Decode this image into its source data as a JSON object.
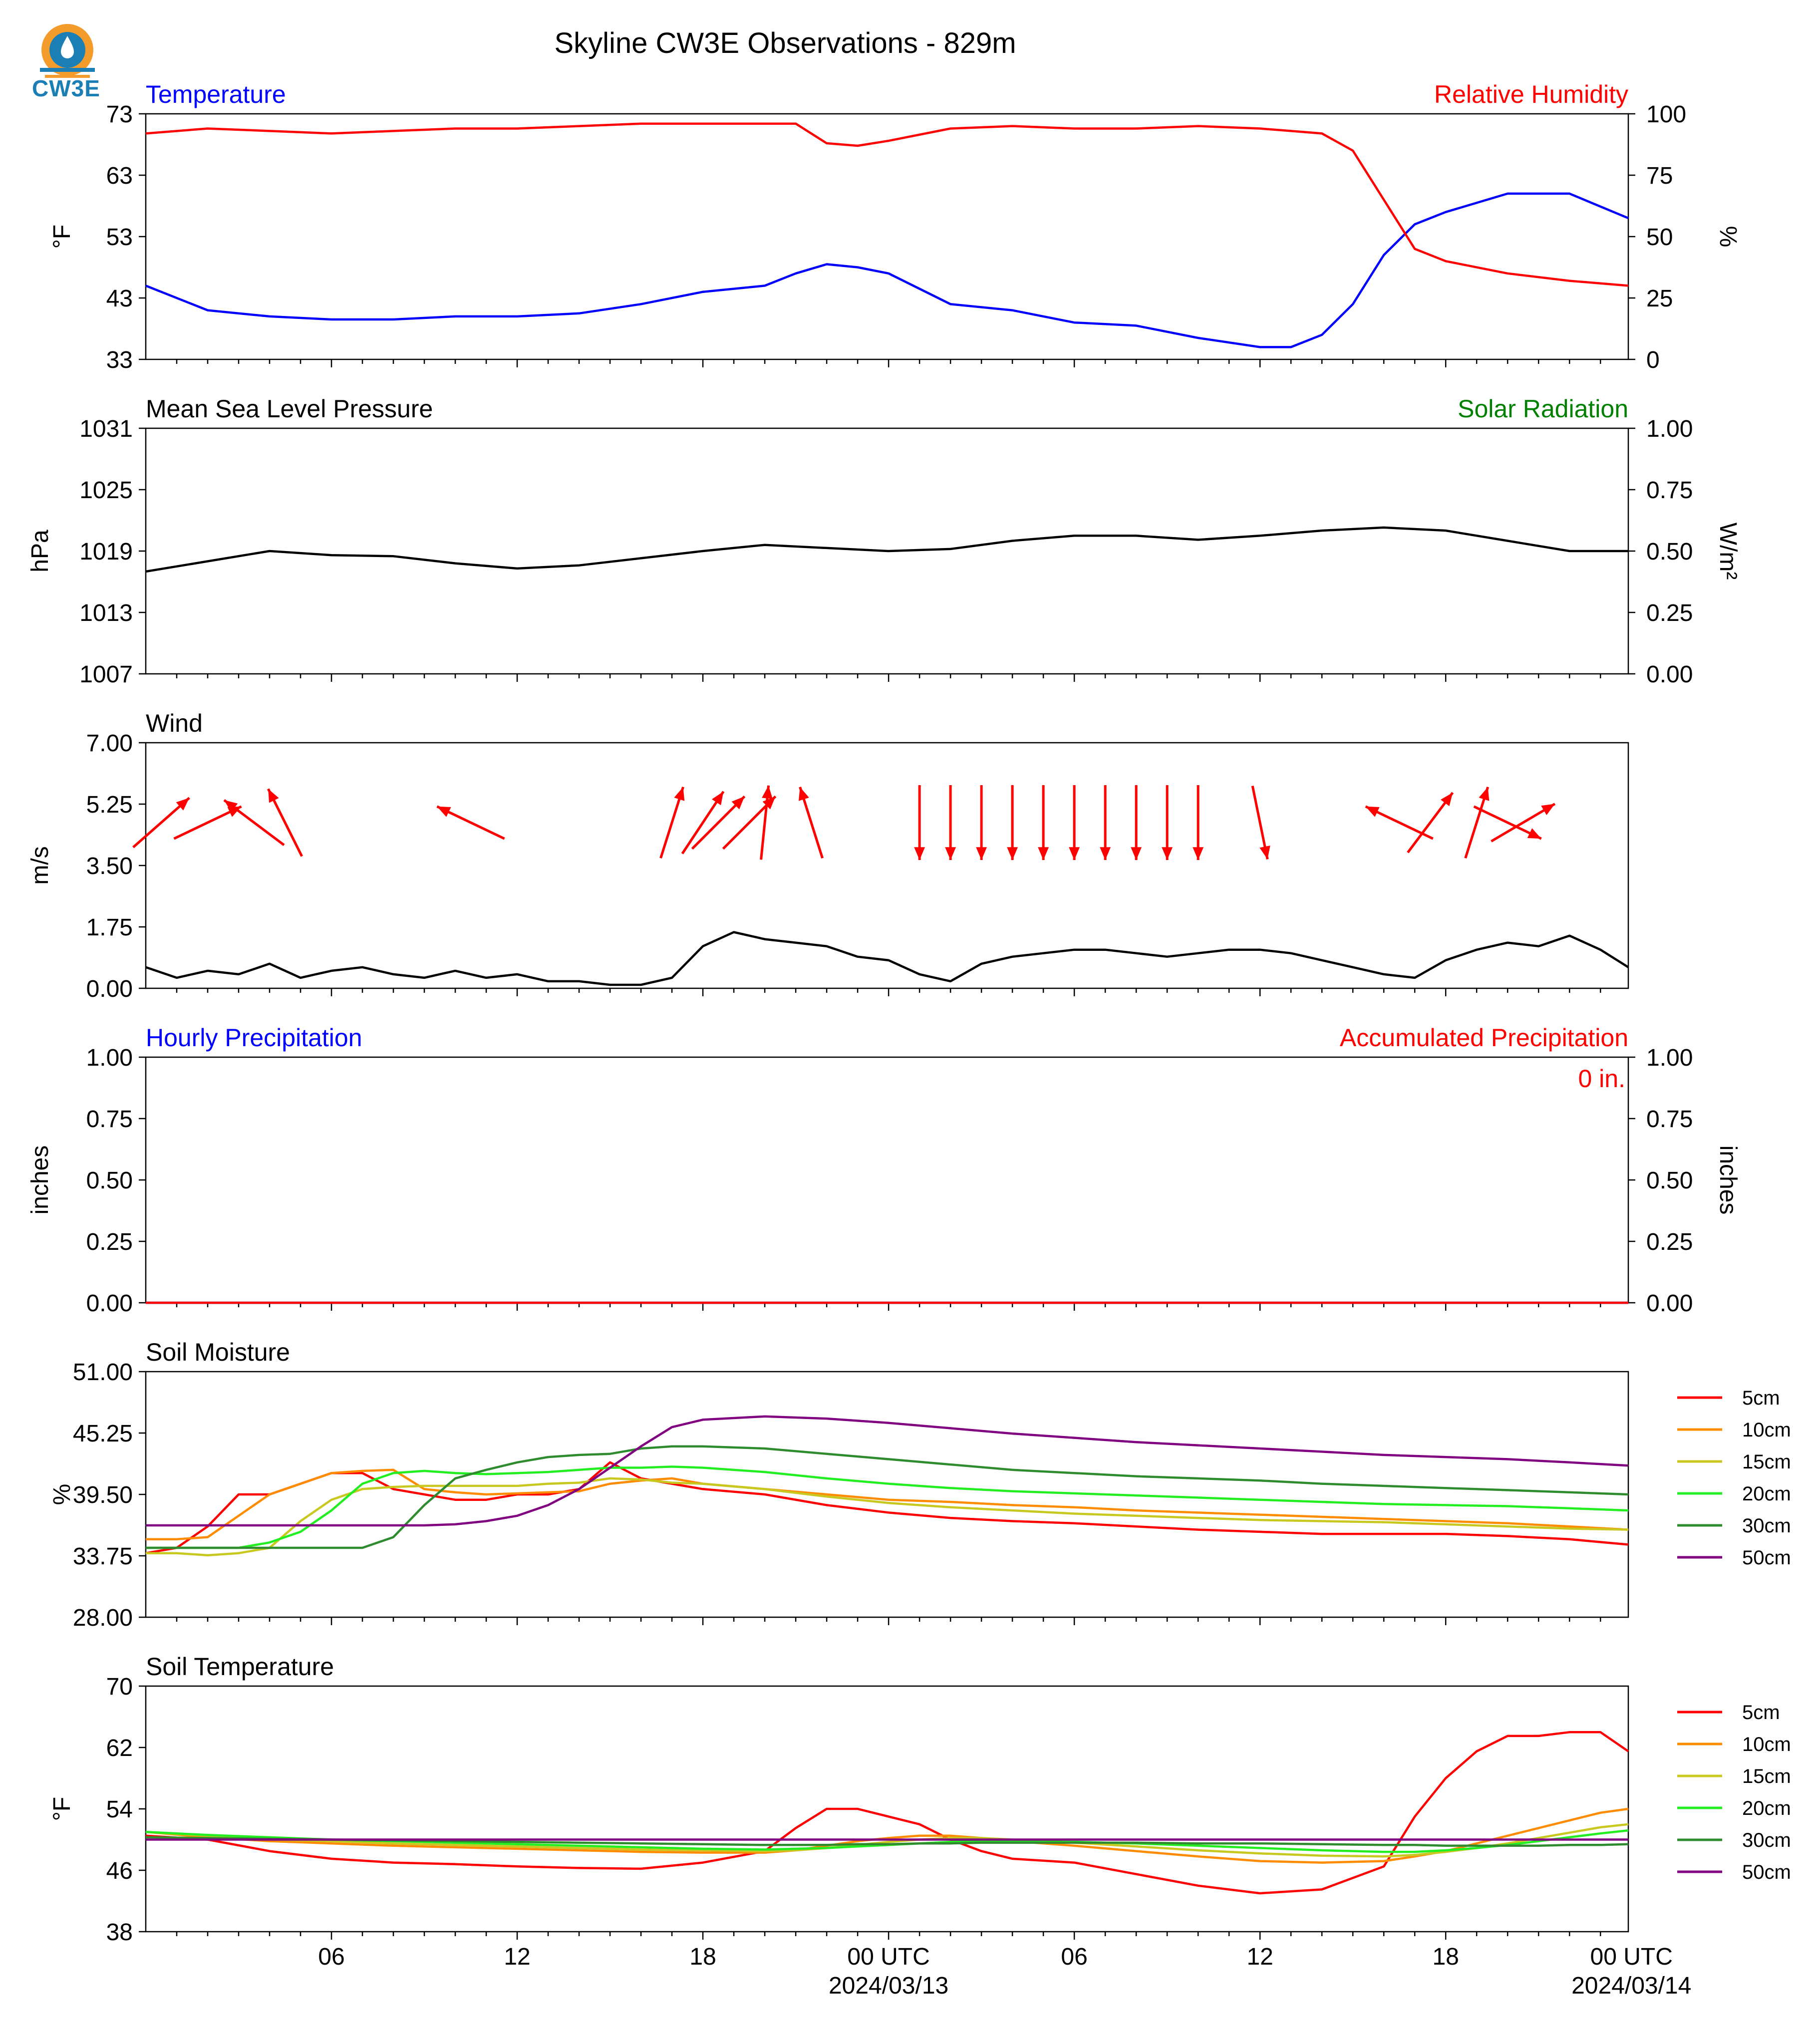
{
  "title": "Skyline CW3E Observations - 829m",
  "logo": {
    "text": "CW3E",
    "icon": "cw3e-logo-icon"
  },
  "x_axis": {
    "labels": [
      "06",
      "12",
      "18",
      "00 UTC",
      "06",
      "12",
      "18",
      "00 UTC"
    ],
    "date_labels": [
      "2024/03/13",
      "2024/03/14"
    ]
  },
  "colors": {
    "temperature": "#0000ff",
    "humidity": "#ff0000",
    "pressure": "#000000",
    "solar": "#008000",
    "wind_arrow": "#ff0000",
    "hourly_precip": "#0000ff",
    "accum_precip": "#ff0000",
    "5cm": "#ff0000",
    "10cm": "#ff8c00",
    "15cm": "#c8c820",
    "20cm": "#22ee22",
    "30cm": "#2e8b2e",
    "50cm": "#800080"
  },
  "chart_data": [
    {
      "type": "line",
      "name": "temperature-humidity",
      "left_title": "Temperature",
      "right_title": "Relative Humidity",
      "ylabel": "°F",
      "ylabel_right": "%",
      "ylim": [
        33,
        73
      ],
      "ylim_right": [
        0,
        100
      ],
      "yticks": [
        "33",
        "43",
        "53",
        "63",
        "73"
      ],
      "yticks_right": [
        "0",
        "25",
        "50",
        "75",
        "100"
      ],
      "x": [
        0,
        2,
        4,
        6,
        8,
        10,
        12,
        14,
        16,
        18,
        20,
        21,
        22,
        23,
        24,
        26,
        28,
        30,
        32,
        34,
        36,
        37,
        38,
        39,
        40,
        41,
        42,
        44,
        46,
        47.9
      ],
      "series": [
        {
          "name": "Temperature",
          "axis": "left",
          "color": "#0000ff",
          "values": [
            45,
            41,
            40,
            39.5,
            39.5,
            40,
            40,
            40.5,
            42,
            44,
            45,
            47,
            48.5,
            48,
            47,
            42,
            41,
            39,
            38.5,
            36.5,
            35,
            35,
            37,
            42,
            50,
            55,
            57,
            60,
            60,
            56
          ]
        },
        {
          "name": "Relative Humidity",
          "axis": "right",
          "color": "#ff0000",
          "values": [
            92,
            94,
            93,
            92,
            93,
            94,
            94,
            95,
            96,
            96,
            96,
            96,
            88,
            87,
            89,
            94,
            95,
            94,
            94,
            95,
            94,
            93,
            92,
            85,
            65,
            45,
            40,
            35,
            32,
            30
          ]
        }
      ]
    },
    {
      "type": "line",
      "name": "pressure-solar",
      "left_title": "Mean Sea Level Pressure",
      "right_title": "Solar Radiation",
      "ylabel": "hPa",
      "ylabel_right": "W/m²",
      "ylim": [
        1007,
        1031
      ],
      "ylim_right": [
        0,
        1
      ],
      "yticks": [
        "1007",
        "1013",
        "1019",
        "1025",
        "1031"
      ],
      "yticks_right": [
        "0.00",
        "0.25",
        "0.50",
        "0.75",
        "1.00"
      ],
      "x": [
        0,
        2,
        4,
        6,
        8,
        10,
        12,
        14,
        16,
        18,
        20,
        22,
        24,
        26,
        28,
        30,
        32,
        34,
        36,
        38,
        40,
        42,
        44,
        46,
        47.9
      ],
      "series": [
        {
          "name": "Mean Sea Level Pressure",
          "axis": "left",
          "color": "#000000",
          "values": [
            1017,
            1018,
            1019,
            1018.6,
            1018.5,
            1017.8,
            1017.3,
            1017.6,
            1018.3,
            1019,
            1019.6,
            1019.3,
            1019,
            1019.2,
            1020,
            1020.5,
            1020.5,
            1020.1,
            1020.5,
            1021,
            1021.3,
            1021,
            1020,
            1019,
            1019
          ]
        }
      ]
    },
    {
      "type": "line",
      "name": "wind",
      "left_title": "Wind",
      "ylabel": "m/s",
      "ylim": [
        0,
        7
      ],
      "yticks": [
        "0.00",
        "1.75",
        "3.50",
        "5.25",
        "7.00"
      ],
      "x": [
        0,
        1,
        2,
        3,
        4,
        5,
        6,
        7,
        8,
        9,
        10,
        11,
        12,
        13,
        14,
        15,
        16,
        17,
        18,
        19,
        20,
        21,
        22,
        23,
        24,
        25,
        26,
        27,
        28,
        29,
        30,
        31,
        32,
        33,
        34,
        35,
        36,
        37,
        38,
        39,
        40,
        41,
        42,
        43,
        44,
        45,
        46,
        47,
        47.9
      ],
      "series": [
        {
          "name": "Wind Speed",
          "axis": "left",
          "color": "#000000",
          "values": [
            0.6,
            0.3,
            0.5,
            0.4,
            0.7,
            0.3,
            0.5,
            0.6,
            0.4,
            0.3,
            0.5,
            0.3,
            0.4,
            0.2,
            0.2,
            0.1,
            0.1,
            0.3,
            1.2,
            1.6,
            1.4,
            1.3,
            1.2,
            0.9,
            0.8,
            0.4,
            0.2,
            0.7,
            0.9,
            1.0,
            1.1,
            1.1,
            1.0,
            0.9,
            1.0,
            1.1,
            1.1,
            1.0,
            0.8,
            0.6,
            0.4,
            0.3,
            0.8,
            1.1,
            1.3,
            1.2,
            1.5,
            1.1,
            0.6
          ]
        }
      ],
      "arrows": {
        "hour": [
          0.5,
          2.0,
          3.5,
          4.5,
          10.5,
          17.0,
          18.0,
          18.5,
          19.5,
          20.0,
          21.5,
          25.0,
          26.0,
          27.0,
          28.0,
          29.0,
          30.0,
          31.0,
          32.0,
          33.0,
          34.0,
          36.0,
          40.5,
          41.5,
          43.0,
          44.0,
          44.5
        ],
        "u": [
          0.75,
          0.9,
          -0.8,
          -0.45,
          -0.9,
          0.3,
          0.55,
          0.7,
          0.7,
          0.1,
          -0.3,
          0,
          0,
          0,
          0,
          0,
          0,
          0,
          0,
          0,
          0,
          0.2,
          -0.9,
          0.6,
          0.3,
          0.9,
          0.85
        ],
        "v": [
          0.66,
          0.43,
          0.6,
          0.9,
          0.43,
          0.95,
          0.83,
          0.7,
          0.7,
          0.99,
          0.95,
          -1,
          -1,
          -1,
          -1,
          -1,
          -1,
          -1,
          -1,
          -1,
          -1,
          -0.98,
          0.43,
          0.8,
          0.95,
          -0.43,
          0.5
        ]
      }
    },
    {
      "type": "line",
      "name": "precipitation",
      "left_title": "Hourly Precipitation",
      "right_title": "Accumulated Precipitation",
      "ylabel": "inches",
      "ylabel_right": "inches",
      "ylim": [
        0,
        1
      ],
      "ylim_right": [
        0,
        1
      ],
      "yticks": [
        "0.00",
        "0.25",
        "0.50",
        "0.75",
        "1.00"
      ],
      "yticks_right": [
        "0.00",
        "0.25",
        "0.50",
        "0.75",
        "1.00"
      ],
      "annotation": "0 in.",
      "x": [
        0,
        47.9
      ],
      "series": [
        {
          "name": "Hourly Precipitation",
          "axis": "left",
          "color": "#0000ff",
          "values": [
            0,
            0
          ]
        },
        {
          "name": "Accumulated Precipitation",
          "axis": "right",
          "color": "#ff0000",
          "values": [
            0,
            0
          ]
        }
      ]
    },
    {
      "type": "line",
      "name": "soil-moisture",
      "left_title": "Soil Moisture",
      "ylabel": "%",
      "ylim": [
        28,
        51
      ],
      "yticks": [
        "28.00",
        "33.75",
        "39.50",
        "45.25",
        "51.00"
      ],
      "legend": "right",
      "x": [
        0,
        1,
        2,
        3,
        4,
        5,
        6,
        7,
        8,
        9,
        10,
        11,
        12,
        13,
        14,
        15,
        16,
        17,
        18,
        20,
        22,
        24,
        26,
        28,
        30,
        32,
        34,
        36,
        38,
        40,
        42,
        44,
        46,
        47.9
      ],
      "series": [
        {
          "name": "5cm",
          "color": "#ff0000",
          "values": [
            34,
            34.5,
            36.5,
            39.5,
            39.5,
            40.5,
            41.5,
            41.5,
            40,
            39.5,
            39,
            39,
            39.5,
            39.5,
            40,
            42.5,
            41,
            40.5,
            40,
            39.5,
            38.5,
            37.8,
            37.3,
            37,
            36.8,
            36.5,
            36.2,
            36,
            35.8,
            35.8,
            35.8,
            35.6,
            35.3,
            34.8
          ]
        },
        {
          "name": "10cm",
          "color": "#ff8c00",
          "values": [
            35.3,
            35.3,
            35.5,
            37.5,
            39.5,
            40.5,
            41.5,
            41.7,
            41.8,
            40,
            39.7,
            39.5,
            39.6,
            39.7,
            39.8,
            40.5,
            40.8,
            41,
            40.5,
            40,
            39.5,
            39,
            38.8,
            38.5,
            38.3,
            38,
            37.8,
            37.6,
            37.4,
            37.2,
            37,
            36.8,
            36.5,
            36.2
          ]
        },
        {
          "name": "15cm",
          "color": "#c8c820",
          "values": [
            34,
            34,
            33.8,
            34,
            34.5,
            37,
            39,
            40,
            40.2,
            40.3,
            40.3,
            40.3,
            40.3,
            40.5,
            40.6,
            41,
            40.9,
            40.6,
            40.5,
            40,
            39.3,
            38.7,
            38.3,
            38,
            37.7,
            37.5,
            37.3,
            37.1,
            37,
            36.9,
            36.7,
            36.5,
            36.3,
            36.2
          ]
        },
        {
          "name": "20cm",
          "color": "#22ee22",
          "values": [
            34.5,
            34.5,
            34.5,
            34.5,
            35,
            36,
            38,
            40.5,
            41.5,
            41.7,
            41.5,
            41.4,
            41.5,
            41.6,
            41.8,
            42,
            42,
            42.1,
            42,
            41.6,
            41,
            40.5,
            40.1,
            39.8,
            39.6,
            39.4,
            39.2,
            39,
            38.8,
            38.6,
            38.5,
            38.4,
            38.2,
            38
          ]
        },
        {
          "name": "30cm",
          "color": "#2e8b2e",
          "values": [
            34.5,
            34.5,
            34.5,
            34.5,
            34.5,
            34.5,
            34.5,
            34.5,
            35.5,
            38.5,
            41,
            41.8,
            42.5,
            43,
            43.2,
            43.3,
            43.8,
            44,
            44,
            43.8,
            43.3,
            42.8,
            42.3,
            41.8,
            41.5,
            41.2,
            41,
            40.8,
            40.5,
            40.3,
            40.1,
            39.9,
            39.7,
            39.5
          ]
        },
        {
          "name": "50cm",
          "color": "#800080",
          "values": [
            36.6,
            36.6,
            36.6,
            36.6,
            36.6,
            36.6,
            36.6,
            36.6,
            36.6,
            36.6,
            36.7,
            37,
            37.5,
            38.5,
            40,
            42,
            44,
            45.8,
            46.5,
            46.8,
            46.6,
            46.2,
            45.7,
            45.2,
            44.8,
            44.4,
            44.1,
            43.8,
            43.5,
            43.2,
            43,
            42.8,
            42.5,
            42.2
          ]
        }
      ]
    },
    {
      "type": "line",
      "name": "soil-temperature",
      "left_title": "Soil Temperature",
      "ylabel": "°F",
      "ylim": [
        38,
        70
      ],
      "yticks": [
        "38",
        "46",
        "54",
        "62",
        "70"
      ],
      "legend": "right",
      "x": [
        0,
        2,
        4,
        6,
        8,
        10,
        12,
        14,
        16,
        18,
        20,
        21,
        22,
        23,
        24,
        25,
        26,
        27,
        28,
        30,
        32,
        34,
        36,
        38,
        40,
        41,
        42,
        43,
        44,
        45,
        46,
        47,
        47.9
      ],
      "series": [
        {
          "name": "5cm",
          "color": "#ff0000",
          "values": [
            50.5,
            50,
            48.5,
            47.5,
            47,
            46.8,
            46.5,
            46.3,
            46.2,
            47,
            48.5,
            51.5,
            54,
            54,
            53,
            52,
            50,
            48.5,
            47.5,
            47,
            45.5,
            44,
            43,
            43.5,
            46.5,
            53,
            58,
            61.5,
            63.5,
            63.5,
            64,
            64,
            61.5
          ]
        },
        {
          "name": "10cm",
          "color": "#ff8c00",
          "values": [
            51,
            50.3,
            49.8,
            49.5,
            49.2,
            49,
            48.8,
            48.6,
            48.4,
            48.3,
            48.3,
            48.6,
            49.2,
            49.8,
            50.2,
            50.5,
            50.5,
            50.2,
            49.8,
            49.2,
            48.5,
            47.8,
            47.2,
            47,
            47.2,
            47.8,
            48.5,
            49.5,
            50.5,
            51.5,
            52.5,
            53.5,
            54
          ]
        },
        {
          "name": "15cm",
          "color": "#c8c820",
          "values": [
            51,
            50.5,
            50,
            49.8,
            49.5,
            49.3,
            49.1,
            48.9,
            48.7,
            48.6,
            48.5,
            48.6,
            48.9,
            49.3,
            49.7,
            50,
            50.2,
            50.2,
            50,
            49.6,
            49.1,
            48.6,
            48.2,
            47.9,
            47.8,
            48,
            48.4,
            48.9,
            49.5,
            50.2,
            50.9,
            51.6,
            52
          ]
        },
        {
          "name": "20cm",
          "color": "#22ee22",
          "values": [
            51,
            50.6,
            50.3,
            50,
            49.8,
            49.6,
            49.4,
            49.2,
            49,
            48.8,
            48.7,
            48.8,
            48.9,
            49.1,
            49.3,
            49.5,
            49.7,
            49.8,
            49.8,
            49.7,
            49.5,
            49.2,
            48.9,
            48.6,
            48.4,
            48.4,
            48.6,
            48.9,
            49.3,
            49.8,
            50.3,
            50.8,
            51.2
          ]
        },
        {
          "name": "30cm",
          "color": "#2e8b2e",
          "values": [
            50.3,
            50.2,
            50.1,
            50,
            49.9,
            49.8,
            49.7,
            49.6,
            49.5,
            49.4,
            49.3,
            49.3,
            49.3,
            49.4,
            49.4,
            49.5,
            49.5,
            49.6,
            49.6,
            49.6,
            49.6,
            49.5,
            49.5,
            49.4,
            49.3,
            49.3,
            49.2,
            49.2,
            49.2,
            49.2,
            49.3,
            49.3,
            49.4
          ]
        },
        {
          "name": "50cm",
          "color": "#800080",
          "values": [
            50,
            50,
            50,
            50,
            50,
            50,
            50,
            50,
            50,
            50,
            50,
            50,
            50,
            50,
            50,
            50,
            50,
            50,
            50,
            50,
            50,
            50,
            50,
            50,
            50,
            50,
            50,
            50,
            50,
            50,
            50,
            50,
            50
          ]
        }
      ]
    }
  ]
}
